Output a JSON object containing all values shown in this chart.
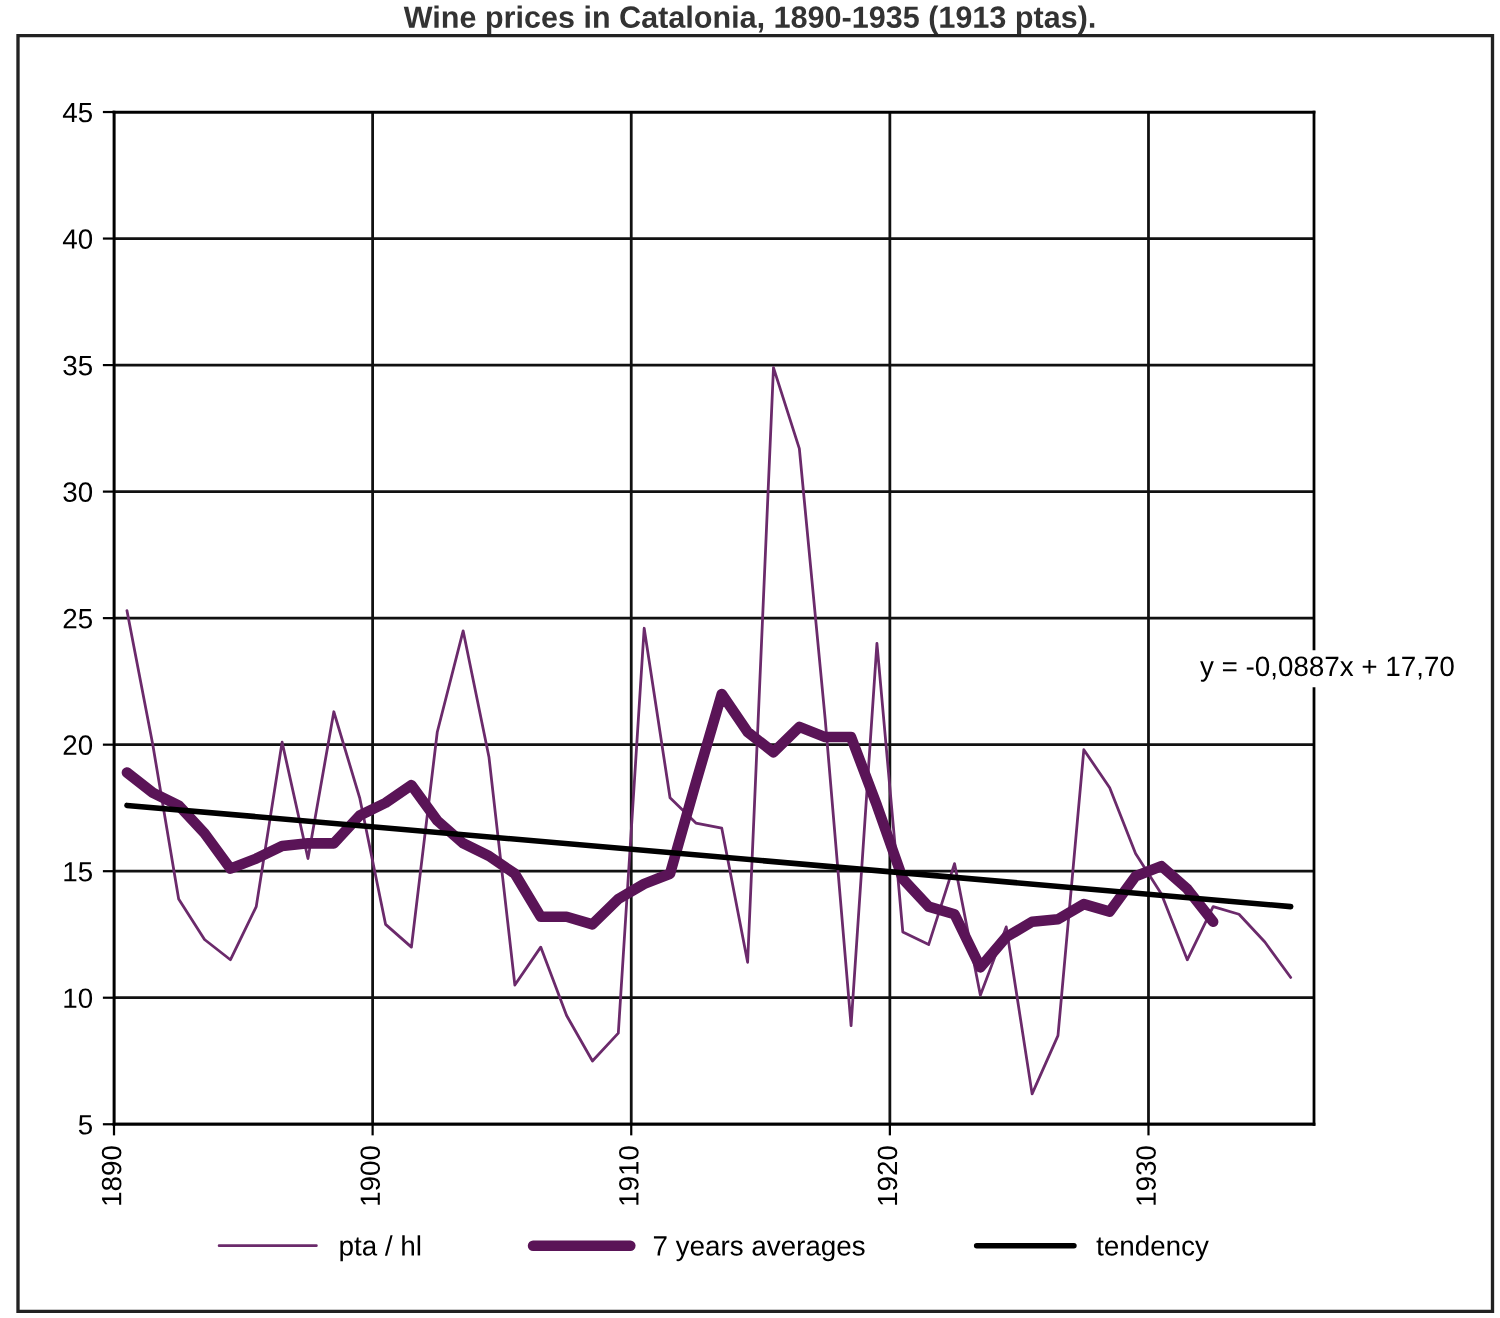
{
  "chart_data": {
    "type": "line",
    "title": "Wine prices in Catalonia, 1890-1935 (1913 ptas).",
    "x": [
      1890,
      1891,
      1892,
      1893,
      1894,
      1895,
      1896,
      1897,
      1898,
      1899,
      1900,
      1901,
      1902,
      1903,
      1904,
      1905,
      1906,
      1907,
      1908,
      1909,
      1910,
      1911,
      1912,
      1913,
      1914,
      1915,
      1916,
      1917,
      1918,
      1919,
      1920,
      1921,
      1922,
      1923,
      1924,
      1925,
      1926,
      1927,
      1928,
      1929,
      1930,
      1931,
      1932,
      1933,
      1934,
      1935
    ],
    "series": [
      {
        "name": "pta / hl",
        "color": "#6b2a6b",
        "values": [
          25.3,
          20.0,
          13.9,
          12.3,
          11.5,
          13.6,
          20.1,
          15.5,
          21.3,
          17.9,
          12.9,
          12.0,
          20.5,
          24.5,
          19.5,
          10.5,
          12.0,
          9.3,
          7.5,
          8.6,
          24.6,
          17.9,
          16.9,
          16.7,
          11.4,
          34.9,
          31.7,
          21.0,
          8.9,
          24.0,
          12.6,
          12.1,
          15.3,
          10.1,
          12.8,
          6.2,
          8.5,
          19.8,
          18.3,
          15.7,
          14.1,
          11.5,
          13.6,
          13.3,
          12.2,
          10.8
        ]
      },
      {
        "name": "7 years averages",
        "color": "#5a1457",
        "values": [
          18.9,
          18.1,
          17.6,
          16.5,
          15.1,
          15.5,
          16.0,
          16.1,
          16.1,
          17.2,
          17.7,
          18.4,
          17.0,
          16.1,
          15.6,
          14.9,
          13.2,
          13.2,
          12.9,
          13.9,
          14.5,
          14.9,
          18.5,
          22.0,
          20.5,
          19.7,
          20.7,
          20.3,
          20.3,
          17.6,
          14.7,
          13.6,
          13.3,
          11.2,
          12.4,
          13.0,
          13.1,
          13.7,
          13.4,
          14.8,
          15.2,
          14.3,
          13.0,
          null,
          null,
          null
        ]
      },
      {
        "name": "tendency",
        "color": "#000000",
        "x": [
          1890,
          1935
        ],
        "values": [
          17.6,
          13.6
        ]
      }
    ],
    "annotations": [
      "y = -0,0887x + 17,70"
    ],
    "xlim": [
      1889.5,
      1935.9
    ],
    "xticks": [
      {
        "value": 1889.5,
        "label": "1890"
      },
      {
        "value": 1899.5,
        "label": "1900"
      },
      {
        "value": 1909.5,
        "label": "1910"
      },
      {
        "value": 1919.5,
        "label": "1920"
      },
      {
        "value": 1929.5,
        "label": "1930"
      }
    ],
    "ylim": [
      5,
      45
    ],
    "yticks": [
      5,
      10,
      15,
      20,
      25,
      30,
      35,
      40,
      45
    ],
    "grid": true,
    "legend": "bottom",
    "marker": "none",
    "line_style": "solid"
  }
}
